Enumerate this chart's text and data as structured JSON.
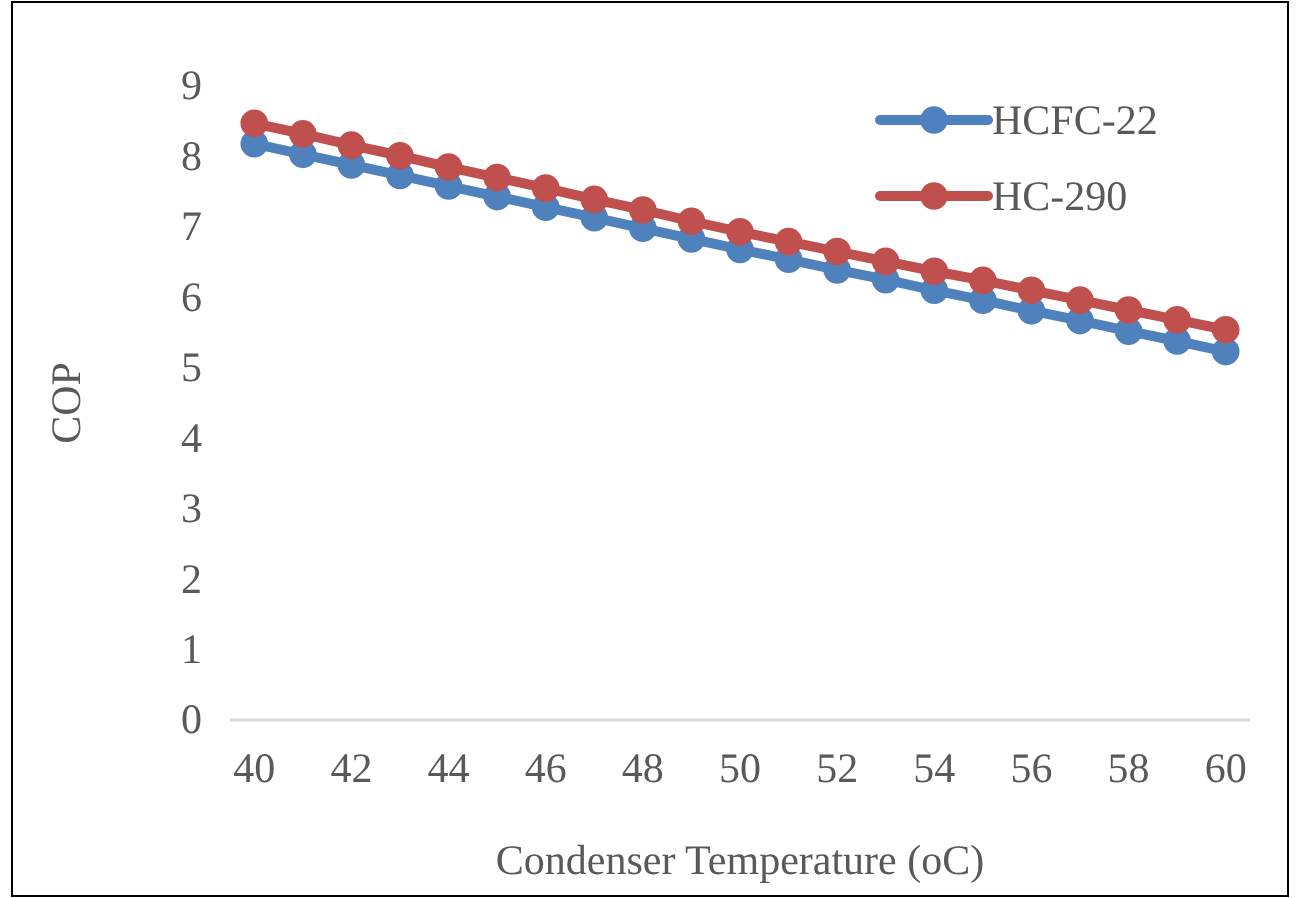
{
  "chart_data": {
    "type": "line",
    "xlabel": "Condenser Temperature (oC)",
    "ylabel": "COP",
    "x": [
      40,
      41,
      42,
      43,
      44,
      45,
      46,
      47,
      48,
      49,
      50,
      51,
      52,
      53,
      54,
      55,
      56,
      57,
      58,
      59,
      60
    ],
    "series": [
      {
        "name": "HCFC-22",
        "color": "#4f81bd",
        "values": [
          8.18,
          8.03,
          7.88,
          7.73,
          7.58,
          7.43,
          7.28,
          7.13,
          6.98,
          6.83,
          6.68,
          6.54,
          6.39,
          6.25,
          6.1,
          5.96,
          5.81,
          5.67,
          5.52,
          5.38,
          5.23
        ]
      },
      {
        "name": "HC-290",
        "color": "#c0504d",
        "values": [
          8.47,
          8.32,
          8.16,
          8.01,
          7.85,
          7.7,
          7.55,
          7.39,
          7.24,
          7.08,
          6.93,
          6.79,
          6.65,
          6.51,
          6.37,
          6.24,
          6.1,
          5.96,
          5.82,
          5.68,
          5.54
        ]
      }
    ],
    "xlim": [
      39.5,
      60.5
    ],
    "xticks": [
      40,
      42,
      44,
      46,
      48,
      50,
      52,
      54,
      56,
      58,
      60
    ],
    "ylim": [
      0,
      9
    ],
    "yticks": [
      0,
      1,
      2,
      3,
      4,
      5,
      6,
      7,
      8,
      9
    ],
    "grid": false,
    "legend": "top right",
    "marker": "circle",
    "line_style": "solid"
  }
}
